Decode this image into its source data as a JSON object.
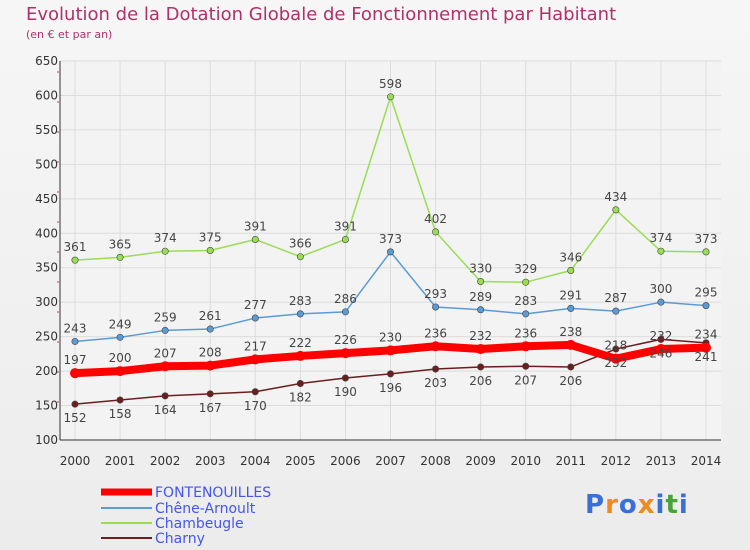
{
  "chart_title": "Evolution de la Dotation Globale de Fonctionnement par Habitant",
  "chart_subtitle": "(en € et par an)",
  "logo_text": "Proxiti",
  "chart_data": {
    "type": "line",
    "title": "Evolution de la Dotation Globale de Fonctionnement par Habitant",
    "subtitle": "(en € et par an)",
    "xlabel": "",
    "ylabel": "",
    "x": [
      "2000",
      "2001",
      "2002",
      "2003",
      "2004",
      "2005",
      "2006",
      "2007",
      "2008",
      "2009",
      "2010",
      "2011",
      "2012",
      "2013",
      "2014"
    ],
    "ylim": [
      100,
      650
    ],
    "yticks": [
      100,
      150,
      200,
      250,
      300,
      350,
      400,
      450,
      500,
      550,
      600,
      650
    ],
    "grid": true,
    "legend_position": "bottom-left",
    "series": [
      {
        "name": "FONTENOUILLES",
        "color": "#ff0000",
        "values": [
          197,
          200,
          207,
          208,
          217,
          222,
          226,
          230,
          236,
          232,
          236,
          238,
          218,
          232,
          234
        ]
      },
      {
        "name": "Chêne-Arnoult",
        "color": "#5b9bd5",
        "values": [
          243,
          249,
          259,
          261,
          277,
          283,
          286,
          373,
          293,
          289,
          283,
          291,
          287,
          300,
          295
        ]
      },
      {
        "name": "Chambeugle",
        "color": "#99dd55",
        "values": [
          361,
          365,
          374,
          375,
          391,
          366,
          391,
          598,
          402,
          330,
          329,
          346,
          434,
          374,
          373
        ]
      },
      {
        "name": "Charny",
        "color": "#6b1e1e",
        "values": [
          152,
          158,
          164,
          167,
          170,
          182,
          190,
          196,
          203,
          206,
          207,
          206,
          232,
          246,
          241
        ]
      }
    ]
  }
}
